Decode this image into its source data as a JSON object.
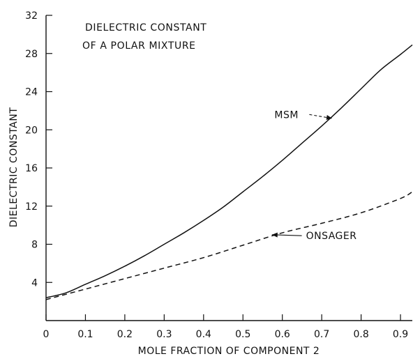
{
  "chart_data": {
    "type": "line",
    "title": [
      "DIELECTRIC CONSTANT",
      "OF A POLAR MIXTURE"
    ],
    "xlabel": "MOLE FRACTION OF COMPONENT 2",
    "ylabel": "DIELECTRIC CONSTANT",
    "xlim": [
      0,
      0.93
    ],
    "ylim": [
      0,
      32
    ],
    "xticks": [
      {
        "value": 0,
        "label": "0"
      },
      {
        "value": 0.1,
        "label": "0.1"
      },
      {
        "value": 0.2,
        "label": "0.2"
      },
      {
        "value": 0.3,
        "label": "0.3"
      },
      {
        "value": 0.4,
        "label": "0.4"
      },
      {
        "value": 0.5,
        "label": "0.5"
      },
      {
        "value": 0.6,
        "label": "0.6"
      },
      {
        "value": 0.7,
        "label": "0.7"
      },
      {
        "value": 0.8,
        "label": "0.8"
      },
      {
        "value": 0.9,
        "label": "0.9"
      }
    ],
    "yticks": [
      {
        "value": 4,
        "label": "4"
      },
      {
        "value": 8,
        "label": "8"
      },
      {
        "value": 12,
        "label": "12"
      },
      {
        "value": 16,
        "label": "16"
      },
      {
        "value": 20,
        "label": "20"
      },
      {
        "value": 24,
        "label": "24"
      },
      {
        "value": 28,
        "label": "28"
      },
      {
        "value": 32,
        "label": "32"
      }
    ],
    "grid": false,
    "legend": "none",
    "series": [
      {
        "name": "MSM",
        "style": "solid",
        "x": [
          0,
          0.05,
          0.1,
          0.15,
          0.2,
          0.25,
          0.3,
          0.35,
          0.4,
          0.45,
          0.5,
          0.55,
          0.6,
          0.65,
          0.7,
          0.75,
          0.8,
          0.85,
          0.9,
          0.93
        ],
        "y": [
          2.4,
          2.9,
          3.8,
          4.7,
          5.7,
          6.8,
          8.0,
          9.2,
          10.5,
          11.9,
          13.5,
          15.1,
          16.8,
          18.6,
          20.4,
          22.3,
          24.3,
          26.3,
          27.9,
          28.9
        ]
      },
      {
        "name": "ONSAGER",
        "style": "dashed",
        "x": [
          0,
          0.1,
          0.2,
          0.3,
          0.4,
          0.5,
          0.6,
          0.7,
          0.8,
          0.9,
          0.93
        ],
        "y": [
          2.2,
          3.3,
          4.4,
          5.5,
          6.6,
          7.9,
          9.2,
          10.2,
          11.3,
          12.8,
          13.5
        ]
      }
    ],
    "annotations": [
      {
        "text": "MSM",
        "series": "MSM",
        "arrow_to": [
          0.73,
          21.2
        ],
        "text_at": [
          0.58,
          21.6
        ]
      },
      {
        "text": "ONSAGER",
        "series": "ONSAGER",
        "arrow_to": [
          0.57,
          9.0
        ],
        "text_at": [
          0.66,
          8.9
        ]
      }
    ],
    "colors": {
      "line": "#111111",
      "axis": "#111111"
    }
  }
}
